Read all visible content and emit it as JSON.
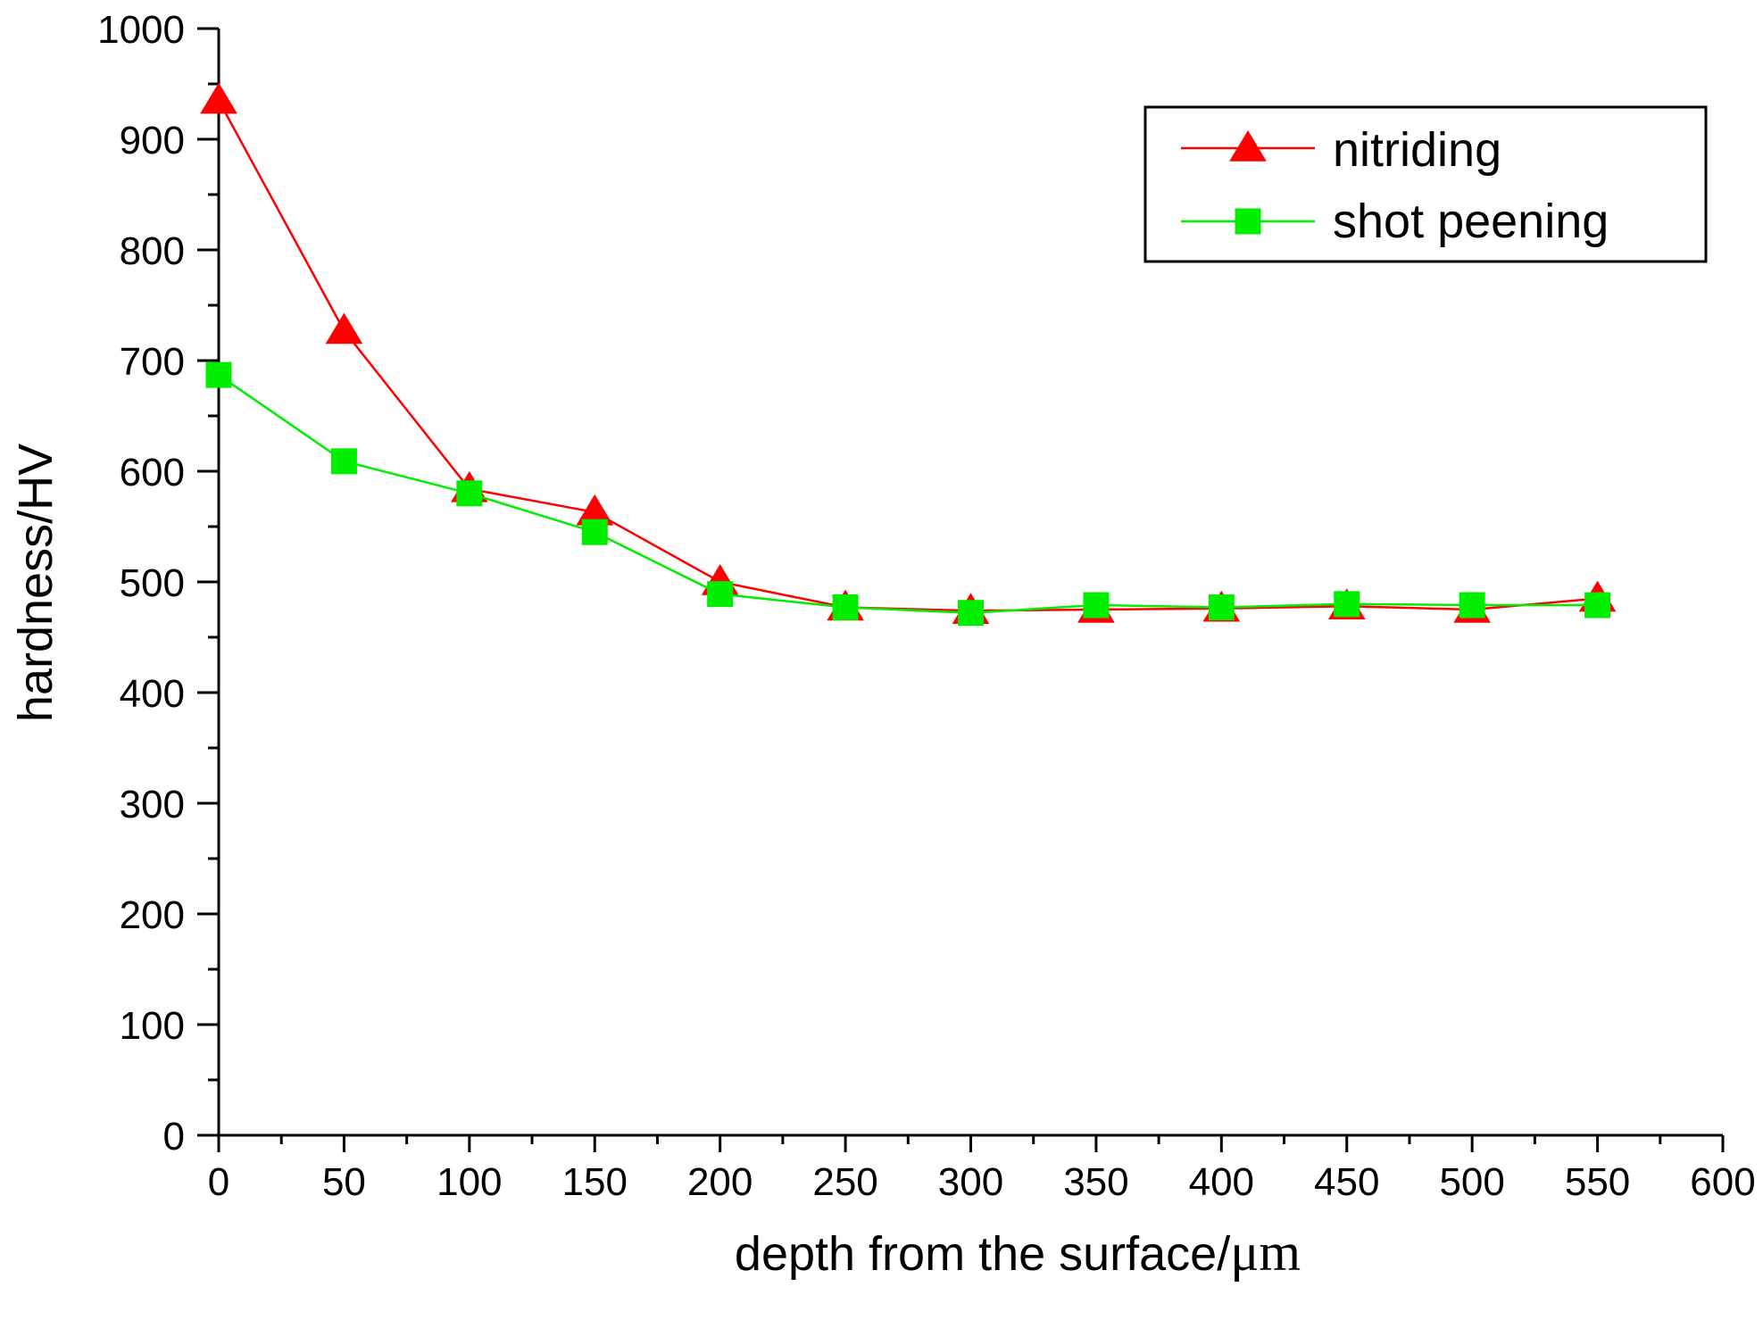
{
  "chart_data": {
    "type": "line",
    "title": "",
    "xlabel": "depth from the surface/",
    "xlabel_unit": "μm",
    "ylabel": "hardness/HV",
    "xlim": [
      0,
      600
    ],
    "ylim": [
      0,
      1000
    ],
    "xticks": [
      0,
      50,
      100,
      150,
      200,
      250,
      300,
      350,
      400,
      450,
      500,
      550,
      600
    ],
    "yticks": [
      0,
      100,
      200,
      300,
      400,
      500,
      600,
      700,
      800,
      900,
      1000
    ],
    "grid": false,
    "legend_position": "top-right",
    "x": [
      0,
      50,
      100,
      150,
      200,
      250,
      300,
      350,
      400,
      450,
      500,
      550
    ],
    "series": [
      {
        "name": "nitriding",
        "marker": "triangle",
        "color": "#ff0000",
        "values": [
          935,
          727,
          584,
          563,
          500,
          477,
          474,
          475,
          476,
          478,
          475,
          485
        ]
      },
      {
        "name": "shot peening",
        "marker": "square",
        "color": "#00ee00",
        "values": [
          687,
          609,
          580,
          545,
          489,
          477,
          472,
          479,
          477,
          480,
          479,
          479
        ]
      }
    ]
  }
}
